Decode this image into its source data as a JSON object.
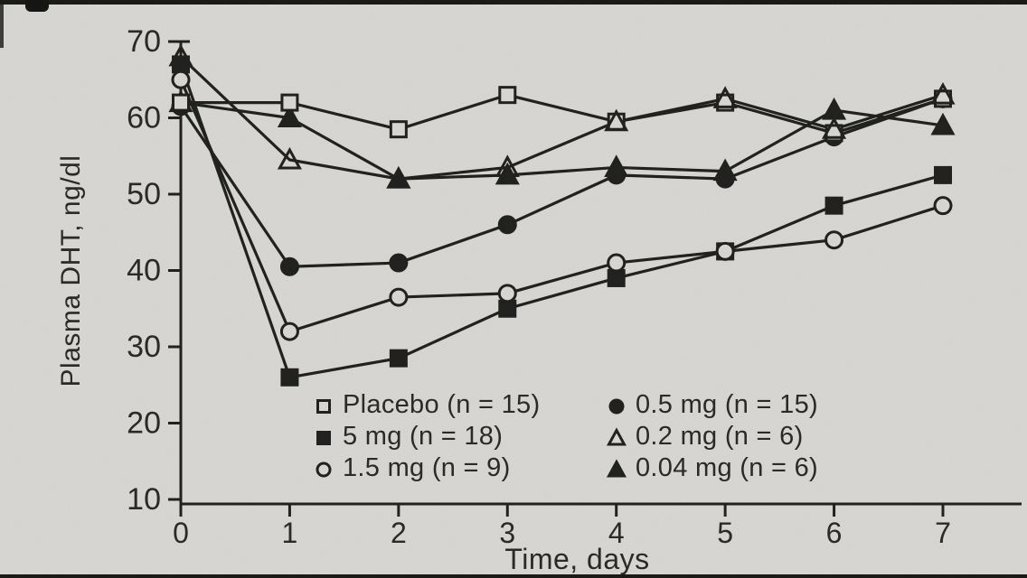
{
  "figure": {
    "background": "#d9d8d4",
    "ink": "#1d1d1b",
    "marker_open_fill": "#d9d8d4"
  },
  "chart_data": {
    "type": "line",
    "title": "",
    "xlabel": "Time, days",
    "ylabel": "Plasma DHT, ng/dl",
    "x": [
      0,
      1,
      2,
      3,
      4,
      5,
      6,
      7
    ],
    "xticks": [
      0,
      1,
      2,
      3,
      4,
      5,
      6,
      7
    ],
    "yticks": [
      10,
      20,
      30,
      40,
      50,
      60,
      70
    ],
    "xlim": [
      0,
      7
    ],
    "ylim": [
      10,
      70
    ],
    "grid": false,
    "legend_position": "inside-bottom",
    "series": [
      {
        "name": "Placebo (n = 15)",
        "marker": "square-open",
        "values": [
          62,
          62,
          58.5,
          63,
          59.5,
          62,
          58,
          62.5
        ]
      },
      {
        "name": "5 mg (n = 18)",
        "marker": "square-filled",
        "values": [
          67,
          26,
          28.5,
          35,
          39,
          42.5,
          48.5,
          52.5
        ]
      },
      {
        "name": "1.5 mg (n = 9)",
        "marker": "circle-open",
        "values": [
          65,
          32,
          36.5,
          37,
          41,
          42.5,
          44,
          48.5
        ]
      },
      {
        "name": "0.5 mg (n = 15)",
        "marker": "circle-filled",
        "values": [
          61.5,
          40.5,
          41,
          46,
          52.5,
          52,
          57.5,
          62.5
        ]
      },
      {
        "name": "0.2 mg (n = 6)",
        "marker": "triangle-open",
        "values": [
          68,
          54.5,
          52,
          53.5,
          59.5,
          62.5,
          58.5,
          63
        ]
      },
      {
        "name": "0.04 mg (n = 6)",
        "marker": "triangle-filled",
        "values": [
          62,
          60,
          52,
          52.5,
          53.5,
          53,
          61,
          59
        ]
      }
    ],
    "legend_columns": [
      [
        0,
        1,
        2
      ],
      [
        3,
        4,
        5
      ]
    ],
    "draw_order": [
      1,
      2,
      3,
      5,
      0,
      4
    ]
  }
}
